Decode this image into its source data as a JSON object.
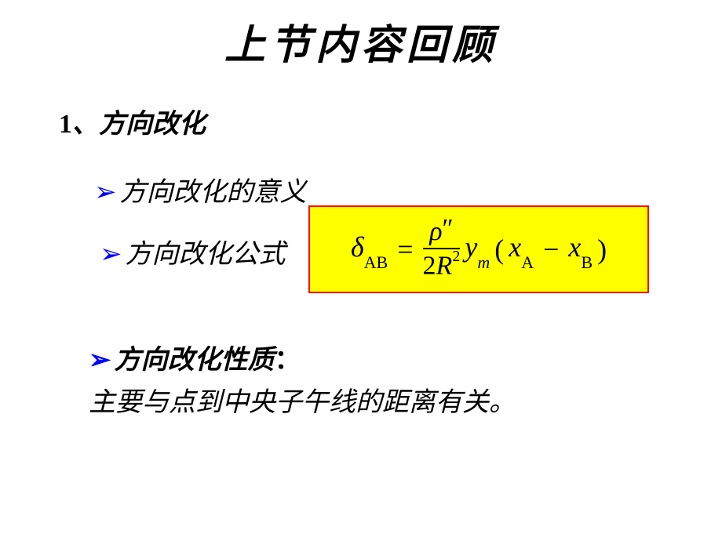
{
  "title": "上节内容回顾",
  "heading_num": "1",
  "heading_sep": "、",
  "heading_text": "方向改化",
  "bullets": {
    "b1": "方向改化的意义",
    "b2": "方向改化公式",
    "b3": "方向改化性质",
    "b3_colon": "：",
    "sub": "主要与点到中央子午线的距离有关。"
  },
  "arrow_glyph": "➢",
  "formula": {
    "delta": "δ",
    "sub_ab": "AB",
    "eq": "=",
    "rho": "ρ",
    "prime": "″",
    "two": "2",
    "R": "R",
    "sq": "2",
    "y": "y",
    "sub_m": "m",
    "lpar": "(",
    "x1": "x",
    "sub_a": "A",
    "minus": "−",
    "x2": "x",
    "sub_b": "B",
    "rpar": ")"
  },
  "colors": {
    "arrow": "#0000ff",
    "box_bg": "#ffff00",
    "box_border": "#ff0000",
    "background": "#ffffff"
  }
}
